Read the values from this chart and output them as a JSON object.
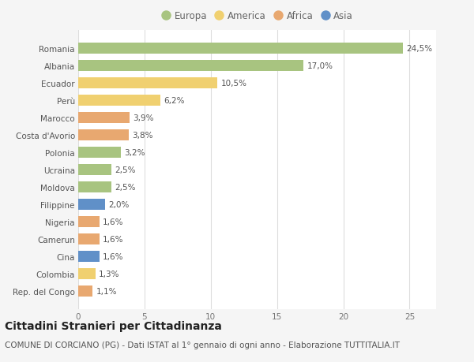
{
  "countries": [
    "Romania",
    "Albania",
    "Ecuador",
    "Perù",
    "Marocco",
    "Costa d'Avorio",
    "Polonia",
    "Ucraina",
    "Moldova",
    "Filippine",
    "Nigeria",
    "Camerun",
    "Cina",
    "Colombia",
    "Rep. del Congo"
  ],
  "values": [
    24.5,
    17.0,
    10.5,
    6.2,
    3.9,
    3.8,
    3.2,
    2.5,
    2.5,
    2.0,
    1.6,
    1.6,
    1.6,
    1.3,
    1.1
  ],
  "labels": [
    "24,5%",
    "17,0%",
    "10,5%",
    "6,2%",
    "3,9%",
    "3,8%",
    "3,2%",
    "2,5%",
    "2,5%",
    "2,0%",
    "1,6%",
    "1,6%",
    "1,6%",
    "1,3%",
    "1,1%"
  ],
  "continents": [
    "Europa",
    "Europa",
    "America",
    "America",
    "Africa",
    "Africa",
    "Europa",
    "Europa",
    "Europa",
    "Asia",
    "Africa",
    "Africa",
    "Asia",
    "America",
    "Africa"
  ],
  "continent_colors": {
    "Europa": "#a8c480",
    "America": "#f0d070",
    "Africa": "#e8a870",
    "Asia": "#6090c8"
  },
  "legend_order": [
    "Europa",
    "America",
    "Africa",
    "Asia"
  ],
  "title": "Cittadini Stranieri per Cittadinanza",
  "subtitle": "COMUNE DI CORCIANO (PG) - Dati ISTAT al 1° gennaio di ogni anno - Elaborazione TUTTITALIA.IT",
  "xlim": [
    0,
    27
  ],
  "xticks": [
    0,
    5,
    10,
    15,
    20,
    25
  ],
  "background_color": "#f5f5f5",
  "plot_bg_color": "#ffffff",
  "grid_color": "#dddddd",
  "title_fontsize": 10,
  "subtitle_fontsize": 7.5,
  "label_fontsize": 7.5,
  "tick_fontsize": 7.5,
  "legend_fontsize": 8.5,
  "bar_height": 0.65
}
